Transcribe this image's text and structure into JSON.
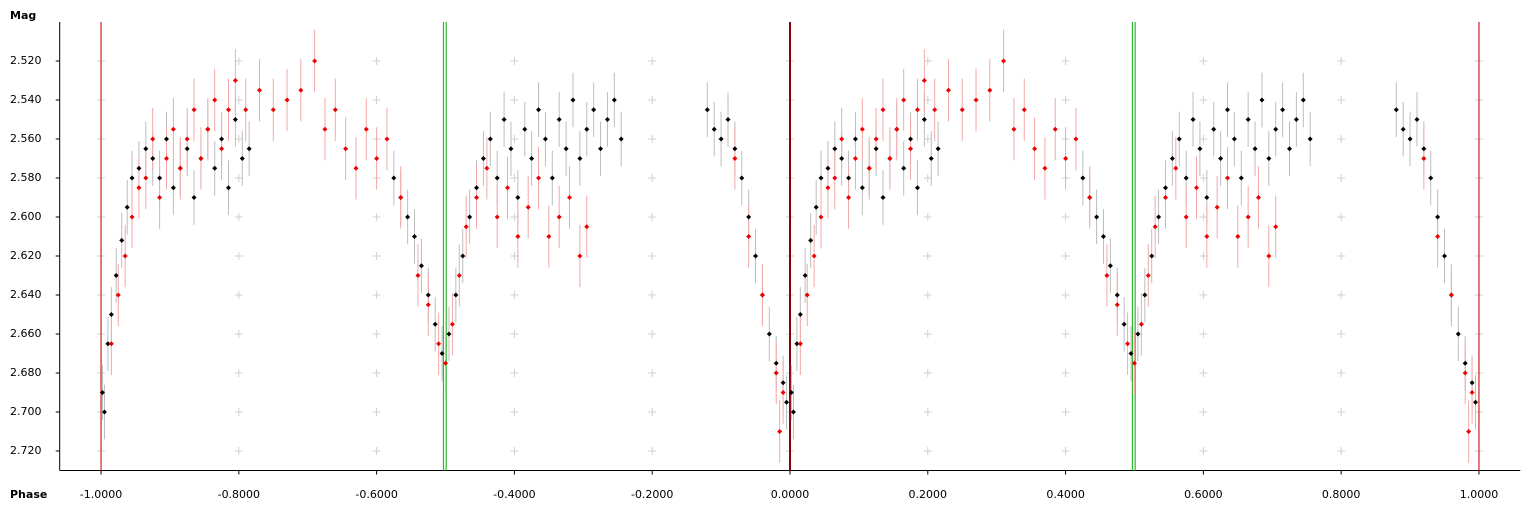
{
  "chart_data": {
    "type": "scatter",
    "x_label": "Phase",
    "y_label": "Mag",
    "xlim": [
      -1.06,
      1.06
    ],
    "ylim": [
      2.5,
      2.73
    ],
    "y_inverted": true,
    "grid": true,
    "xticks": [
      {
        "value": -1,
        "label": "-1.0000"
      },
      {
        "value": -0.8,
        "label": "-0.8000"
      },
      {
        "value": -0.6,
        "label": "-0.6000"
      },
      {
        "value": -0.4,
        "label": "-0.4000"
      },
      {
        "value": -0.2,
        "label": "-0.2000"
      },
      {
        "value": 0,
        "label": "0.0000"
      },
      {
        "value": 0.2,
        "label": "0.2000"
      },
      {
        "value": 0.4,
        "label": "0.4000"
      },
      {
        "value": 0.6,
        "label": "0.6000"
      },
      {
        "value": 0.8,
        "label": "0.8000"
      },
      {
        "value": 1,
        "label": "1.0000"
      }
    ],
    "yticks": [
      {
        "value": 2.52,
        "label": "2.520"
      },
      {
        "value": 2.54,
        "label": "2.540"
      },
      {
        "value": 2.56,
        "label": "2.560"
      },
      {
        "value": 2.58,
        "label": "2.580"
      },
      {
        "value": 2.6,
        "label": "2.600"
      },
      {
        "value": 2.62,
        "label": "2.620"
      },
      {
        "value": 2.64,
        "label": "2.640"
      },
      {
        "value": 2.66,
        "label": "2.660"
      },
      {
        "value": 2.68,
        "label": "2.680"
      },
      {
        "value": 2.7,
        "label": "2.700"
      },
      {
        "value": 2.72,
        "label": "2.720"
      }
    ],
    "vlines": [
      {
        "x": -1,
        "color": "#cc2020"
      },
      {
        "x": -0.503,
        "color": "#2db82d"
      },
      {
        "x": -0.499,
        "color": "#2db82d"
      },
      {
        "x": 0,
        "color": "#8b0000"
      },
      {
        "x": 0.497,
        "color": "#2db82d"
      },
      {
        "x": 0.501,
        "color": "#2db82d"
      },
      {
        "x": 1,
        "color": "#cc2020"
      }
    ],
    "series": [
      {
        "color": "#000000",
        "error_color": "#bdbdbd",
        "error": 0.014,
        "x": [
          -0.998,
          -0.995,
          -0.99,
          -0.985,
          -0.978,
          -0.97,
          -0.962,
          -0.955,
          -0.945,
          -0.935,
          -0.925,
          -0.915,
          -0.905,
          -0.895,
          -0.885,
          -0.875,
          -0.865,
          -0.855,
          -0.845,
          -0.835,
          -0.825,
          -0.815,
          -0.805,
          -0.795,
          -0.785,
          -0.575,
          -0.565,
          -0.555,
          -0.545,
          -0.535,
          -0.525,
          -0.515,
          -0.505,
          -0.495,
          -0.485,
          -0.475,
          -0.465,
          -0.455,
          -0.445,
          -0.435,
          -0.425,
          -0.415,
          -0.405,
          -0.395,
          -0.385,
          -0.375,
          -0.365,
          -0.355,
          -0.345,
          -0.335,
          -0.325,
          -0.315,
          -0.305,
          -0.295,
          -0.285,
          -0.275,
          -0.265,
          -0.255,
          -0.245,
          -0.12,
          -0.11,
          -0.1,
          -0.09,
          -0.08,
          -0.07,
          -0.06,
          -0.05,
          -0.04,
          -0.03,
          -0.02,
          -0.01,
          -0.005,
          0.002,
          0.005,
          0.01,
          0.015,
          0.022,
          0.03,
          0.038,
          0.045,
          0.055,
          0.065,
          0.075,
          0.085,
          0.095,
          0.105,
          0.115,
          0.125,
          0.135,
          0.145,
          0.155,
          0.165,
          0.175,
          0.185,
          0.195,
          0.205,
          0.215,
          0.425,
          0.435,
          0.445,
          0.455,
          0.465,
          0.475,
          0.485,
          0.495,
          0.505,
          0.515,
          0.525,
          0.535,
          0.545,
          0.555,
          0.565,
          0.575,
          0.585,
          0.595,
          0.605,
          0.615,
          0.625,
          0.635,
          0.645,
          0.655,
          0.665,
          0.675,
          0.685,
          0.695,
          0.705,
          0.715,
          0.725,
          0.735,
          0.745,
          0.755,
          0.88,
          0.89,
          0.9,
          0.91,
          0.92,
          0.93,
          0.94,
          0.95,
          0.96,
          0.97,
          0.98,
          0.99,
          0.995
        ],
        "y": [
          2.69,
          2.7,
          2.665,
          2.65,
          2.63,
          2.612,
          2.595,
          2.58,
          2.575,
          2.565,
          2.57,
          2.58,
          2.56,
          2.585,
          2.575,
          2.565,
          2.59,
          2.57,
          2.555,
          2.575,
          2.56,
          2.585,
          2.55,
          2.57,
          2.565,
          2.58,
          2.59,
          2.6,
          2.61,
          2.625,
          2.64,
          2.655,
          2.67,
          2.66,
          2.64,
          2.62,
          2.6,
          2.585,
          2.57,
          2.56,
          2.58,
          2.55,
          2.565,
          2.59,
          2.555,
          2.57,
          2.545,
          2.56,
          2.58,
          2.55,
          2.565,
          2.54,
          2.57,
          2.555,
          2.545,
          2.565,
          2.55,
          2.54,
          2.56,
          2.545,
          2.555,
          2.56,
          2.55,
          2.565,
          2.58,
          2.6,
          2.62,
          2.64,
          2.66,
          2.675,
          2.685,
          2.695,
          2.69,
          2.7,
          2.665,
          2.65,
          2.63,
          2.612,
          2.595,
          2.58,
          2.575,
          2.565,
          2.57,
          2.58,
          2.56,
          2.585,
          2.575,
          2.565,
          2.59,
          2.57,
          2.555,
          2.575,
          2.56,
          2.585,
          2.55,
          2.57,
          2.565,
          2.58,
          2.59,
          2.6,
          2.61,
          2.625,
          2.64,
          2.655,
          2.67,
          2.66,
          2.64,
          2.62,
          2.6,
          2.585,
          2.57,
          2.56,
          2.58,
          2.55,
          2.565,
          2.59,
          2.555,
          2.57,
          2.545,
          2.56,
          2.58,
          2.55,
          2.565,
          2.54,
          2.57,
          2.555,
          2.545,
          2.565,
          2.55,
          2.54,
          2.56,
          2.545,
          2.555,
          2.56,
          2.55,
          2.565,
          2.58,
          2.6,
          2.62,
          2.64,
          2.66,
          2.675,
          2.685,
          2.695
        ]
      },
      {
        "color": "#ee0000",
        "error_color": "#f4a8a8",
        "error": 0.016,
        "x": [
          -0.985,
          -0.975,
          -0.965,
          -0.955,
          -0.945,
          -0.935,
          -0.925,
          -0.915,
          -0.905,
          -0.895,
          -0.885,
          -0.875,
          -0.865,
          -0.855,
          -0.845,
          -0.835,
          -0.825,
          -0.815,
          -0.805,
          -0.79,
          -0.77,
          -0.75,
          -0.73,
          -0.71,
          -0.69,
          -0.675,
          -0.66,
          -0.645,
          -0.63,
          -0.615,
          -0.6,
          -0.585,
          -0.565,
          -0.54,
          -0.525,
          -0.51,
          -0.5,
          -0.49,
          -0.48,
          -0.47,
          -0.455,
          -0.44,
          -0.425,
          -0.41,
          -0.395,
          -0.38,
          -0.365,
          -0.35,
          -0.335,
          -0.32,
          -0.305,
          -0.295,
          -0.08,
          -0.06,
          -0.04,
          -0.02,
          -0.015,
          -0.01,
          0.015,
          0.025,
          0.035,
          0.045,
          0.055,
          0.065,
          0.075,
          0.085,
          0.095,
          0.105,
          0.115,
          0.125,
          0.135,
          0.145,
          0.155,
          0.165,
          0.175,
          0.185,
          0.195,
          0.21,
          0.23,
          0.25,
          0.27,
          0.29,
          0.31,
          0.325,
          0.34,
          0.355,
          0.37,
          0.385,
          0.4,
          0.415,
          0.435,
          0.46,
          0.475,
          0.49,
          0.5,
          0.51,
          0.52,
          0.53,
          0.545,
          0.56,
          0.575,
          0.59,
          0.605,
          0.62,
          0.635,
          0.65,
          0.665,
          0.68,
          0.695,
          0.705,
          0.92,
          0.94,
          0.96,
          0.98,
          0.985,
          0.99
        ],
        "y": [
          2.665,
          2.64,
          2.62,
          2.6,
          2.585,
          2.58,
          2.56,
          2.59,
          2.57,
          2.555,
          2.575,
          2.56,
          2.545,
          2.57,
          2.555,
          2.54,
          2.565,
          2.545,
          2.53,
          2.545,
          2.535,
          2.545,
          2.54,
          2.535,
          2.52,
          2.555,
          2.545,
          2.565,
          2.575,
          2.555,
          2.57,
          2.56,
          2.59,
          2.63,
          2.645,
          2.665,
          2.675,
          2.655,
          2.63,
          2.605,
          2.59,
          2.575,
          2.6,
          2.585,
          2.61,
          2.595,
          2.58,
          2.61,
          2.6,
          2.59,
          2.62,
          2.605,
          2.57,
          2.61,
          2.64,
          2.68,
          2.71,
          2.69,
          2.665,
          2.64,
          2.62,
          2.6,
          2.585,
          2.58,
          2.56,
          2.59,
          2.57,
          2.555,
          2.575,
          2.56,
          2.545,
          2.57,
          2.555,
          2.54,
          2.565,
          2.545,
          2.53,
          2.545,
          2.535,
          2.545,
          2.54,
          2.535,
          2.52,
          2.555,
          2.545,
          2.565,
          2.575,
          2.555,
          2.57,
          2.56,
          2.59,
          2.63,
          2.645,
          2.665,
          2.675,
          2.655,
          2.63,
          2.605,
          2.59,
          2.575,
          2.6,
          2.585,
          2.61,
          2.595,
          2.58,
          2.61,
          2.6,
          2.59,
          2.62,
          2.605,
          2.57,
          2.61,
          2.64,
          2.68,
          2.71,
          2.69
        ]
      }
    ]
  }
}
